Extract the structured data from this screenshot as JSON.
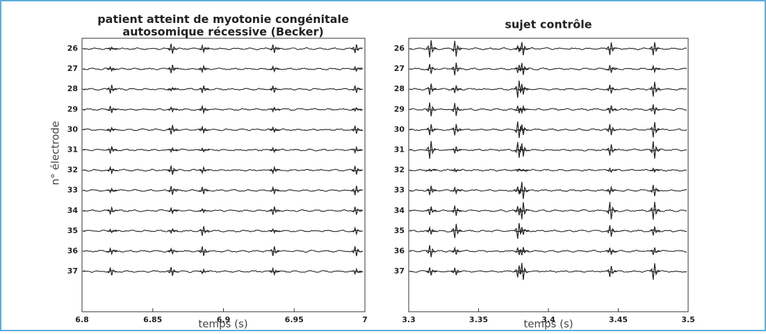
{
  "chart_data": [
    {
      "type": "traces",
      "title": "patient atteint de myotonie congénitale autosomique récessive (Becker)",
      "xlabel": "temps (s)",
      "ylabel": "n° électrode",
      "categories": [
        "26",
        "27",
        "28",
        "29",
        "30",
        "31",
        "32",
        "33",
        "34",
        "35",
        "36",
        "37"
      ],
      "xlim": [
        6.8,
        7
      ],
      "xticks": [
        6.8,
        6.85,
        6.9,
        6.95,
        7
      ],
      "events": [
        6.82,
        6.863,
        6.885,
        6.935,
        6.993
      ],
      "color": "#222222"
    },
    {
      "type": "traces",
      "title": "sujet contrôle",
      "xlabel": "temps (s)",
      "categories": [
        "26",
        "27",
        "28",
        "29",
        "30",
        "31",
        "32",
        "33",
        "34",
        "35",
        "36",
        "37"
      ],
      "xlim": [
        3.3,
        3.5
      ],
      "xticks": [
        3.3,
        3.35,
        3.4,
        3.45,
        3.5
      ],
      "events": [
        3.315,
        3.333,
        3.378,
        3.381,
        3.444,
        3.475
      ],
      "color": "#222222"
    }
  ]
}
